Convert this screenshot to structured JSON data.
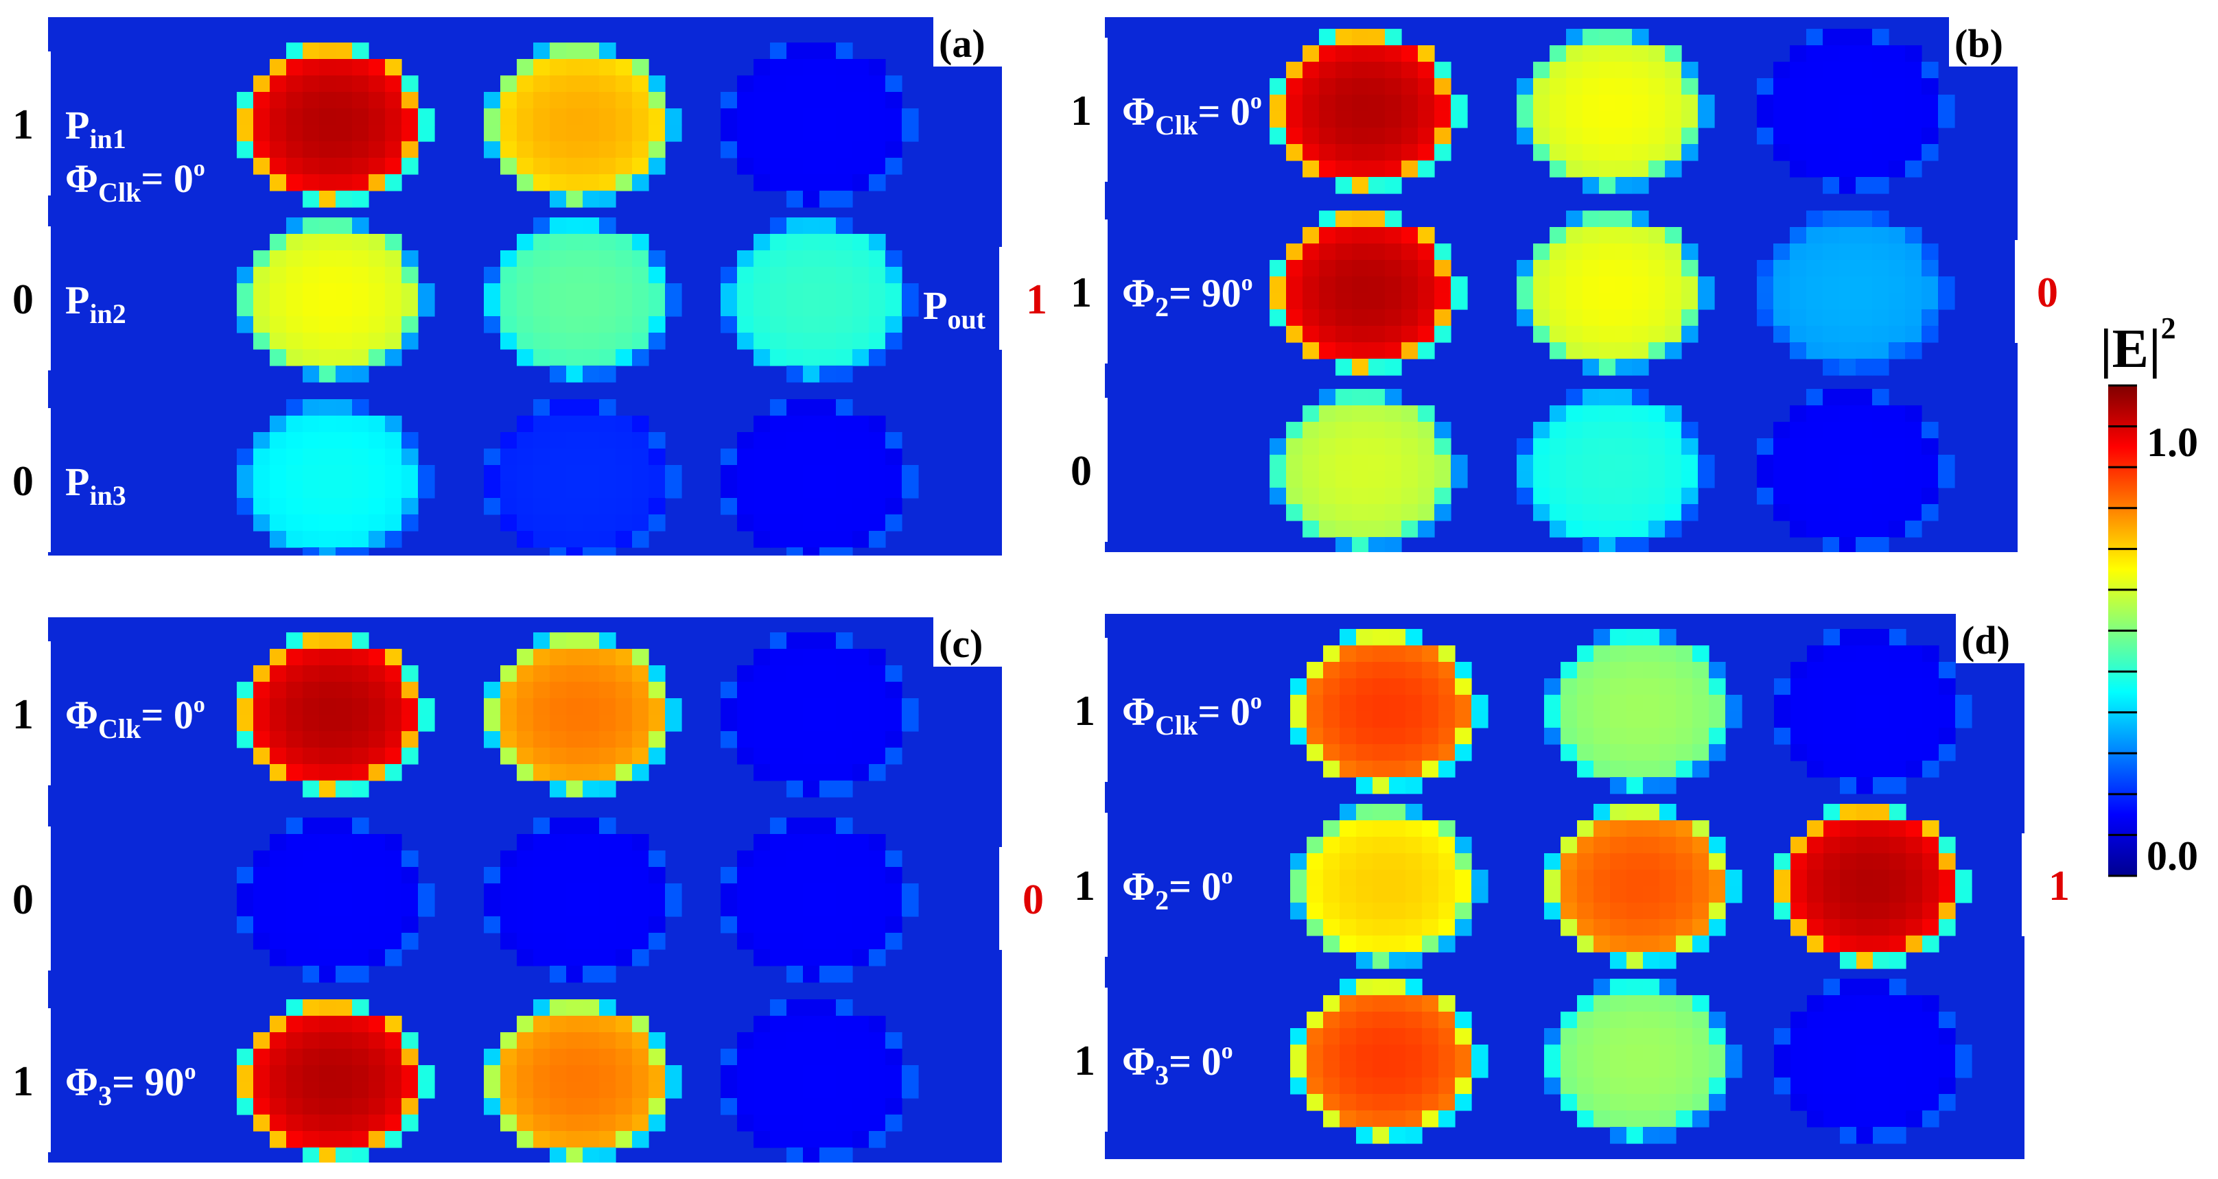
{
  "figure_title": "",
  "panels": [
    {
      "id": "a",
      "tag": "(a)",
      "rows": [
        {
          "input": "1",
          "label_main": "P",
          "label_sub": "in1",
          "label_kind": "port"
        },
        {
          "input": "0",
          "label_main": "P",
          "label_sub": "in2",
          "label_kind": "port"
        },
        {
          "input": "0",
          "label_main": "P",
          "label_sub": "in3",
          "label_kind": "port"
        }
      ],
      "extra_labels": [
        {
          "main": "Φ",
          "sub": "Clk",
          "rest": "= 0",
          "sup": "o"
        },
        {
          "main": "P",
          "sub": "out",
          "rest": "",
          "sup": ""
        }
      ],
      "output": "1",
      "spots": [
        [
          1.0,
          0.72,
          0.05
        ],
        [
          0.62,
          0.45,
          0.4
        ],
        [
          0.35,
          0.1,
          0.05
        ]
      ]
    },
    {
      "id": "b",
      "tag": "(b)",
      "rows": [
        {
          "input": "1",
          "label_main": "Φ",
          "label_sub": "Clk",
          "rest": "= 0",
          "sup": "o"
        },
        {
          "input": "1",
          "label_main": "Φ",
          "label_sub": "2",
          "rest": "= 90",
          "sup": "o"
        },
        {
          "input": "0",
          "label_main": "",
          "label_sub": "",
          "rest": "",
          "sup": ""
        }
      ],
      "output": "0",
      "spots": [
        [
          1.0,
          0.62,
          0.05
        ],
        [
          1.0,
          0.62,
          0.25
        ],
        [
          0.58,
          0.38,
          0.05
        ]
      ]
    },
    {
      "id": "c",
      "tag": "(c)",
      "rows": [
        {
          "input": "1",
          "label_main": "Φ",
          "label_sub": "Clk",
          "rest": "= 0",
          "sup": "o"
        },
        {
          "input": "0",
          "label_main": "",
          "label_sub": "",
          "rest": "",
          "sup": ""
        },
        {
          "input": "1",
          "label_main": "Φ",
          "label_sub": "3",
          "rest": "= 90",
          "sup": "o"
        }
      ],
      "output": "0",
      "spots": [
        [
          1.0,
          0.78,
          0.05
        ],
        [
          0.05,
          0.05,
          0.05
        ],
        [
          1.0,
          0.78,
          0.05
        ]
      ]
    },
    {
      "id": "d",
      "tag": "(d)",
      "rows": [
        {
          "input": "1",
          "label_main": "Φ",
          "label_sub": "Clk",
          "rest": "= 0",
          "sup": "o"
        },
        {
          "input": "1",
          "label_main": "Φ",
          "label_sub": "2",
          "rest": "= 0",
          "sup": "o"
        },
        {
          "input": "1",
          "label_main": "Φ",
          "label_sub": "3",
          "rest": "= 0",
          "sup": "o"
        }
      ],
      "output": "1",
      "spots": [
        [
          0.85,
          0.52,
          0.05
        ],
        [
          0.68,
          0.82,
          1.0
        ],
        [
          0.85,
          0.52,
          0.05
        ]
      ]
    }
  ],
  "colorbar": {
    "title": "|E|",
    "title_sup": "2",
    "tick_max": "1.0",
    "tick_min": "0.0",
    "range": [
      0.0,
      1.15
    ],
    "colors": [
      "#00008f",
      "#0000ff",
      "#0080ff",
      "#00ffff",
      "#80ff80",
      "#ffff00",
      "#ff8000",
      "#ff0000",
      "#800000"
    ]
  }
}
